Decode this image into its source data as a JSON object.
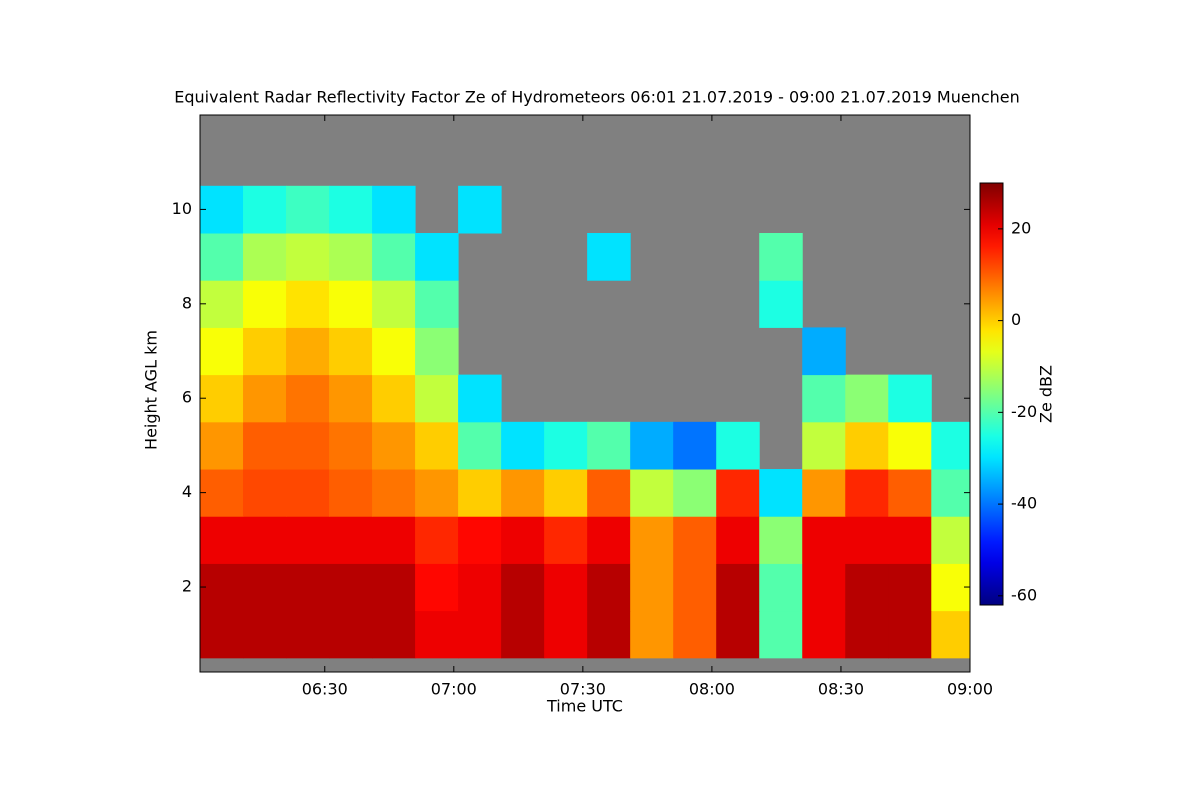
{
  "chart_data": {
    "type": "heatmap",
    "title": "Equivalent Radar Reflectivity Factor Ze of Hydrometeors   06:01 21.07.2019 - 09:00 21.07.2019 Muenchen",
    "x_label": "Time UTC",
    "y_label": "Height AGL km",
    "x": [
      "06:06",
      "06:16",
      "06:26",
      "06:36",
      "06:46",
      "06:56",
      "07:06",
      "07:16",
      "07:26",
      "07:36",
      "07:46",
      "07:56",
      "08:06",
      "08:16",
      "08:26",
      "08:36",
      "08:46",
      "08:56"
    ],
    "y": [
      1,
      2,
      3,
      4,
      5,
      6,
      7,
      8,
      9,
      10,
      11
    ],
    "z": [
      [
        25,
        25,
        25,
        25,
        25,
        20,
        20,
        25,
        20,
        25,
        5,
        10,
        25,
        -20,
        20,
        25,
        25,
        0
      ],
      [
        25,
        25,
        25,
        25,
        25,
        18,
        20,
        25,
        20,
        25,
        5,
        10,
        25,
        -20,
        20,
        25,
        25,
        -5
      ],
      [
        20,
        20,
        20,
        20,
        20,
        15,
        18,
        20,
        15,
        20,
        5,
        10,
        20,
        -15,
        20,
        20,
        20,
        -10
      ],
      [
        10,
        12,
        12,
        10,
        8,
        5,
        0,
        5,
        0,
        10,
        -10,
        -15,
        15,
        -30,
        5,
        15,
        10,
        -20
      ],
      [
        5,
        10,
        10,
        8,
        5,
        0,
        -20,
        -30,
        -25,
        -20,
        -35,
        -40,
        -25,
        null,
        -10,
        0,
        -5,
        -25
      ],
      [
        0,
        5,
        8,
        5,
        0,
        -10,
        -30,
        null,
        null,
        null,
        null,
        null,
        null,
        null,
        -20,
        -15,
        -25,
        null
      ],
      [
        -5,
        0,
        3,
        0,
        -5,
        -15,
        null,
        null,
        null,
        null,
        null,
        null,
        null,
        null,
        -35,
        null,
        null,
        null
      ],
      [
        -10,
        -5,
        -2,
        -5,
        -10,
        -20,
        null,
        null,
        null,
        null,
        null,
        null,
        null,
        -25,
        null,
        null,
        null,
        null
      ],
      [
        -20,
        -12,
        -10,
        -12,
        -20,
        -30,
        null,
        null,
        null,
        -30,
        null,
        null,
        null,
        -20,
        null,
        null,
        null,
        null
      ],
      [
        -30,
        -25,
        -22,
        -25,
        -30,
        null,
        -30,
        null,
        null,
        null,
        null,
        null,
        null,
        null,
        null,
        null,
        null,
        null
      ],
      [
        null,
        null,
        null,
        null,
        null,
        null,
        null,
        null,
        null,
        null,
        null,
        null,
        null,
        null,
        null,
        null,
        null,
        null
      ]
    ],
    "xlim": [
      "06:01",
      "09:00"
    ],
    "xticks": [
      "06:30",
      "07:00",
      "07:30",
      "08:00",
      "08:30",
      "09:00"
    ],
    "ylim": [
      0.2,
      12
    ],
    "yticks": [
      2,
      4,
      6,
      8,
      10
    ],
    "colormap": "jet",
    "missing_color": "#808080",
    "colorbar": {
      "label": "Ze dBZ",
      "lim": [
        -62,
        30
      ],
      "ticks": [
        -60,
        -40,
        -20,
        0,
        20
      ]
    }
  }
}
